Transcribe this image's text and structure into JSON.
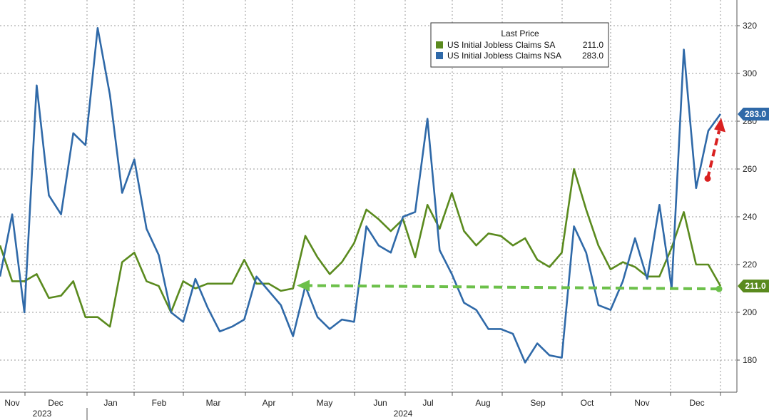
{
  "chart_data": {
    "type": "line",
    "title": "",
    "xlabel": "",
    "ylabel": "",
    "ylim": [
      165,
      330
    ],
    "y_ticks": [
      180,
      200,
      220,
      240,
      260,
      280,
      300,
      320
    ],
    "x_month_labels": [
      "Nov",
      "Dec",
      "Jan",
      "Feb",
      "Mar",
      "Apr",
      "May",
      "Jun",
      "Jul",
      "Aug",
      "Sep",
      "Oct",
      "Nov",
      "Dec"
    ],
    "x_year_labels": [
      "2023",
      "2024"
    ],
    "grid": true,
    "legend": {
      "title": "Last Price",
      "position": "top-center",
      "entries": [
        {
          "name": "US Initial Jobless Claims SA",
          "last": "211.0"
        },
        {
          "name": "US Initial Jobless Claims NSA",
          "last": "283.0"
        }
      ]
    },
    "series": [
      {
        "name": "US Initial Jobless Claims SA",
        "color": "#5a8a1e",
        "last_label": "211.0",
        "values": [
          228,
          213,
          213,
          216,
          206,
          207,
          213,
          198,
          198,
          194,
          221,
          225,
          213,
          211,
          200,
          213,
          210,
          212,
          212,
          212,
          222,
          212,
          212,
          209,
          210,
          232,
          223,
          216,
          221,
          229,
          243,
          239,
          234,
          239,
          223,
          245,
          235,
          250,
          234,
          228,
          233,
          232,
          228,
          231,
          222,
          219,
          225,
          260,
          243,
          228,
          218,
          221,
          219,
          215,
          215,
          227,
          242,
          220,
          220,
          211
        ]
      },
      {
        "name": "US Initial Jobless Claims NSA",
        "color": "#2f69a8",
        "last_label": "283.0",
        "values": [
          215,
          241,
          200,
          295,
          249,
          241,
          275,
          270,
          319,
          291,
          250,
          264,
          235,
          224,
          200,
          196,
          214,
          202,
          192,
          194,
          197,
          215,
          209,
          203,
          190,
          211,
          198,
          193,
          197,
          196,
          236,
          228,
          225,
          240,
          242,
          281,
          226,
          216,
          204,
          201,
          193,
          193,
          191,
          179,
          187,
          182,
          181,
          236,
          225,
          203,
          201,
          213,
          231,
          214,
          245,
          210,
          310,
          252,
          276,
          283
        ]
      }
    ],
    "annotations": [
      {
        "type": "dashed-arrow",
        "color": "#6cc04a",
        "direction": "left",
        "note": "flat level ~210 from Apr 2024 to latest"
      },
      {
        "type": "dashed-arrow",
        "color": "#d92020",
        "direction": "up",
        "note": "NSA rise from ~256 to 283"
      }
    ]
  }
}
